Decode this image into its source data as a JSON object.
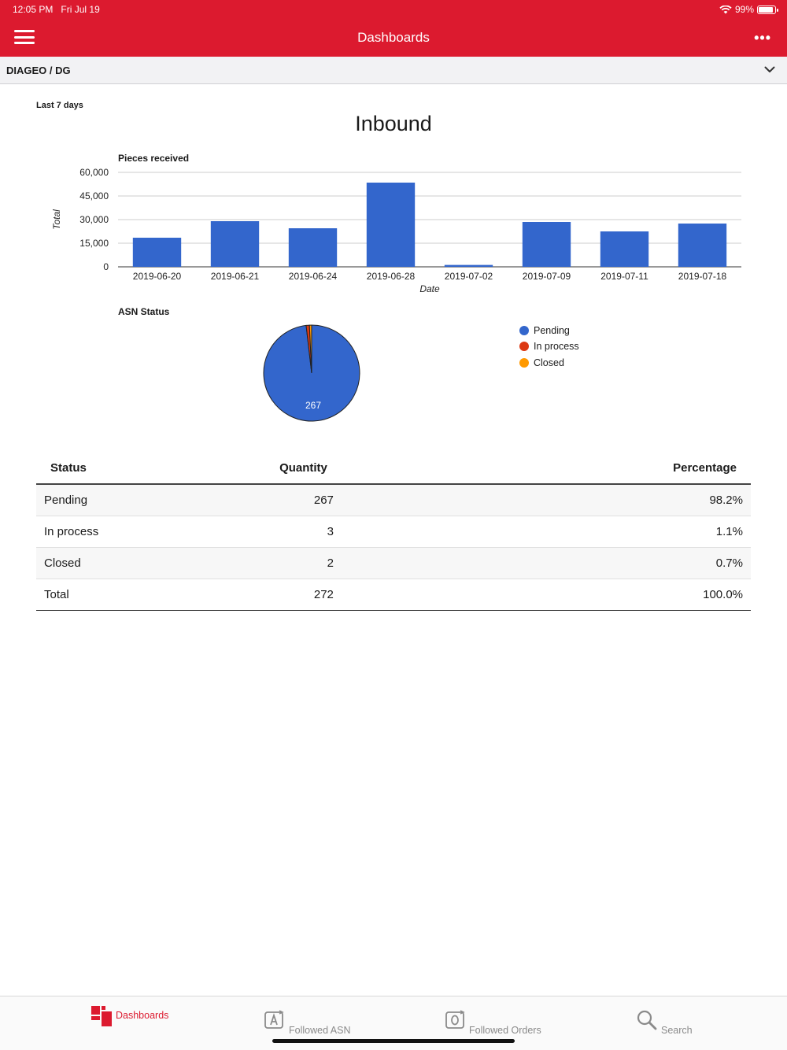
{
  "status_bar": {
    "time": "12:05 PM",
    "date": "Fri Jul 19",
    "battery": "99%"
  },
  "header": {
    "title": "Dashboards",
    "more": "•••"
  },
  "org": {
    "name": "DIAGEO / DG"
  },
  "page": {
    "period": "Last 7 days",
    "title": "Inbound"
  },
  "bar_chart_title": "Pieces received",
  "pie_chart_title": "ASN Status",
  "chart_data": [
    {
      "type": "bar",
      "title": "Pieces received",
      "xlabel": "Date",
      "ylabel": "Total",
      "categories": [
        "2019-06-20",
        "2019-06-21",
        "2019-06-24",
        "2019-06-28",
        "2019-07-02",
        "2019-07-09",
        "2019-07-11",
        "2019-07-18"
      ],
      "values": [
        18500,
        29000,
        24500,
        53500,
        1200,
        28500,
        22500,
        27500
      ],
      "ylim": [
        0,
        60000
      ],
      "yticks": [
        "0",
        "15,000",
        "30,000",
        "45,000",
        "60,000"
      ],
      "color": "#3366cc",
      "grid": true
    },
    {
      "type": "pie",
      "title": "ASN Status",
      "labels": [
        "Pending",
        "In process",
        "Closed"
      ],
      "values": [
        267,
        3,
        2
      ],
      "colors": [
        "#3366cc",
        "#dc3912",
        "#ff9900"
      ],
      "slice_label": "267",
      "legend": "right"
    }
  ],
  "table": {
    "headers": {
      "status": "Status",
      "quantity": "Quantity",
      "percentage": "Percentage"
    },
    "rows": [
      {
        "status": "Pending",
        "quantity": "267",
        "percentage": "98.2%"
      },
      {
        "status": "In process",
        "quantity": "3",
        "percentage": "1.1%"
      },
      {
        "status": "Closed",
        "quantity": "2",
        "percentage": "0.7%"
      }
    ],
    "total": {
      "status": "Total",
      "quantity": "272",
      "percentage": "100.0%"
    }
  },
  "tabs": [
    {
      "label": "Dashboards",
      "icon": "dashboards-icon",
      "active": true
    },
    {
      "label": "Followed ASN",
      "icon": "followed-asn-icon",
      "active": false
    },
    {
      "label": "Followed Orders",
      "icon": "followed-orders-icon",
      "active": false
    },
    {
      "label": "Search",
      "icon": "search-icon",
      "active": false
    }
  ],
  "colors": {
    "brand": "#dc1a2f",
    "bar": "#3366cc"
  }
}
